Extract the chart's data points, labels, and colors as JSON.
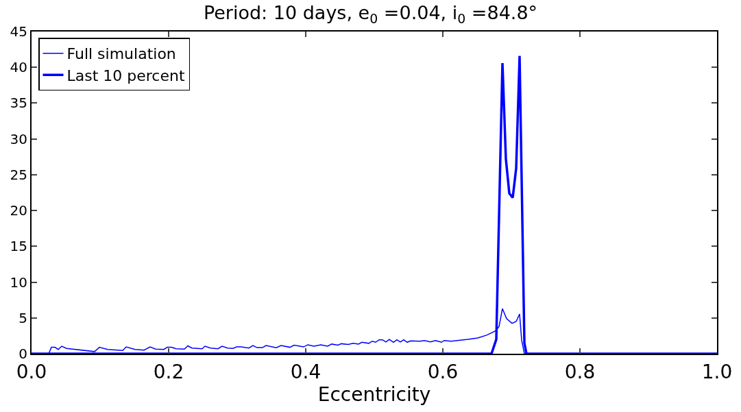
{
  "chart_data": {
    "type": "line",
    "title": "Period: 10 days, e$_{0}$ =0.04, i$_{0}$ =84.8°",
    "xlabel": "Eccentricity",
    "xlim": [
      0,
      1
    ],
    "xticks": [
      {
        "value": 0,
        "label": "0.0"
      },
      {
        "value": 0.2,
        "label": "0.2"
      },
      {
        "value": 0.4,
        "label": "0.4"
      },
      {
        "value": 0.6,
        "label": "0.6"
      },
      {
        "value": 0.8,
        "label": "0.8"
      },
      {
        "value": 1,
        "label": "1.0"
      }
    ],
    "ylim": [
      0,
      45
    ],
    "yticks": [
      0,
      5,
      10,
      15,
      20,
      25,
      30,
      35,
      40,
      45
    ],
    "grid": false,
    "legend": "top left",
    "marker": "none",
    "line_style": "solid",
    "series": [
      {
        "name": "Full simulation",
        "color": "#0000ff",
        "x": [
          0,
          0.025,
          0.029,
          0.034,
          0.039,
          0.044,
          0.051,
          0.092,
          0.099,
          0.111,
          0.133,
          0.138,
          0.151,
          0.164,
          0.173,
          0.181,
          0.193,
          0.198,
          0.204,
          0.211,
          0.223,
          0.228,
          0.234,
          0.249,
          0.253,
          0.261,
          0.272,
          0.278,
          0.286,
          0.294,
          0.299,
          0.306,
          0.317,
          0.323,
          0.329,
          0.337,
          0.342,
          0.357,
          0.364,
          0.377,
          0.383,
          0.397,
          0.403,
          0.412,
          0.422,
          0.432,
          0.438,
          0.447,
          0.452,
          0.462,
          0.469,
          0.477,
          0.482,
          0.492,
          0.497,
          0.502,
          0.507,
          0.512,
          0.517,
          0.522,
          0.528,
          0.533,
          0.538,
          0.543,
          0.548,
          0.553,
          0.567,
          0.573,
          0.582,
          0.589,
          0.593,
          0.598,
          0.602,
          0.612,
          0.637,
          0.651,
          0.664,
          0.677,
          0.682,
          0.687,
          0.693,
          0.701,
          0.707,
          0.712,
          0.715,
          0.719,
          1
        ],
        "values": [
          0,
          0,
          0.9,
          0.9,
          0.6,
          1.05,
          0.75,
          0.3,
          0.9,
          0.6,
          0.45,
          0.95,
          0.6,
          0.5,
          0.95,
          0.65,
          0.6,
          0.9,
          0.9,
          0.7,
          0.65,
          1.1,
          0.8,
          0.7,
          1.05,
          0.8,
          0.7,
          1.05,
          0.8,
          0.75,
          0.95,
          0.95,
          0.8,
          1.15,
          0.85,
          0.85,
          1.15,
          0.85,
          1.15,
          0.9,
          1.2,
          0.95,
          1.25,
          1.05,
          1.25,
          1.05,
          1.35,
          1.2,
          1.4,
          1.3,
          1.45,
          1.35,
          1.6,
          1.45,
          1.75,
          1.6,
          1.95,
          1.95,
          1.65,
          2.0,
          1.6,
          1.95,
          1.65,
          1.95,
          1.6,
          1.8,
          1.75,
          1.85,
          1.65,
          1.85,
          1.75,
          1.6,
          1.85,
          1.75,
          2.0,
          2.2,
          2.6,
          3.2,
          3.8,
          6.3,
          4.9,
          4.25,
          4.5,
          5.55,
          1.9,
          0,
          0
        ]
      },
      {
        "name": "Last 10 percent",
        "color": "#0000ff",
        "x": [
          0,
          0.671,
          0.678,
          0.687,
          0.692,
          0.697,
          0.702,
          0.707,
          0.712,
          0.719,
          0.722,
          1
        ],
        "values": [
          0,
          0,
          2.0,
          40.6,
          27.2,
          22.4,
          21.8,
          25.9,
          41.6,
          1.5,
          0,
          0
        ]
      }
    ]
  }
}
